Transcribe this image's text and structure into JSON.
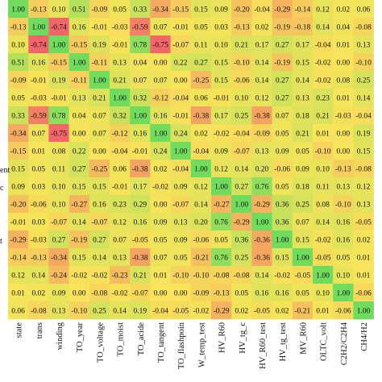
{
  "chart_data": {
    "type": "heatmap",
    "title": "",
    "xlabel": "",
    "ylabel": "",
    "x_categories": [
      "state",
      "trans",
      "winding",
      "TO_year",
      "TO_voltage",
      "TO_moist",
      "TO_acide",
      "TO_tangent",
      "TO_flashpoin",
      "W_temp_test",
      "HV_R60",
      "HV_tg_c",
      "HV_R60_test",
      "HV_tg_test",
      "MV_R60",
      "OLTC_volt",
      "C2H2/C2H4",
      "CH4/H2"
    ],
    "y_visible_label_fragments": [
      {
        "row": 10,
        "text": "ent"
      },
      {
        "row": 11,
        "text": "c"
      },
      {
        "row": 14,
        "text": "t"
      }
    ],
    "color_scale": {
      "low": "#f25c6a",
      "mid": "#f7e45a",
      "high": "#6fdc5e",
      "min": -0.8,
      "max": 1.0
    },
    "values": [
      [
        "1.00",
        "-0.13",
        "0.10",
        "0.51",
        "-0.09",
        "0.05",
        "0.33",
        "-0.34",
        "-0.15",
        "0.15",
        "0.09",
        "-0.20",
        "-0.04",
        "-0.29",
        "-0.14",
        "0.12",
        "0.02",
        "0.06"
      ],
      [
        "-0.13",
        "1.00",
        "-0.74",
        "0.16",
        "-0.01",
        "-0.03",
        "-0.59",
        "0.07",
        "-0.01",
        "0.05",
        "0.03",
        "-0.13",
        "0.02",
        "-0.19",
        "-0.18",
        "0.14",
        "0.04",
        "-0.08"
      ],
      [
        "0.10",
        "-0.74",
        "1.00",
        "-0.15",
        "0.19",
        "-0.01",
        "0.78",
        "-0.75",
        "-0.07",
        "0.11",
        "0.10",
        "0.21",
        "0.17",
        "0.27",
        "0.17",
        "-0.04",
        "0.01",
        "0.13"
      ],
      [
        "0.51",
        "0.16",
        "-0.15",
        "1.00",
        "-0.11",
        "0.13",
        "0.04",
        "0.00",
        "0.22",
        "0.27",
        "0.15",
        "-0.10",
        "0.14",
        "-0.19",
        "0.15",
        "-0.02",
        "0.00",
        "-0.10"
      ],
      [
        "-0.09",
        "-0.01",
        "0.19",
        "-0.11",
        "1.00",
        "0.21",
        "0.07",
        "0.07",
        "0.00",
        "-0.25",
        "0.15",
        "-0.06",
        "0.14",
        "0.27",
        "0.14",
        "-0.02",
        "0.08",
        "0.25"
      ],
      [
        "0.05",
        "-0.03",
        "-0.01",
        "0.13",
        "0.21",
        "1.00",
        "0.32",
        "-0.12",
        "-0.04",
        "0.06",
        "-0.01",
        "0.10",
        "0.12",
        "0.27",
        "0.13",
        "0.23",
        "0.01",
        "0.14"
      ],
      [
        "0.33",
        "-0.59",
        "0.78",
        "0.04",
        "0.07",
        "0.32",
        "1.00",
        "0.16",
        "-0.01",
        "-0.38",
        "0.17",
        "0.25",
        "-0.38",
        "0.07",
        "0.18",
        "0.21",
        "-0.03",
        "-0.04"
      ],
      [
        "-0.34",
        "0.07",
        "-0.75",
        "0.00",
        "0.07",
        "-0.12",
        "0.16",
        "1.00",
        "0.24",
        "0.02",
        "-0.02",
        "-0.04",
        "-0.09",
        "0.05",
        "0.21",
        "0.01",
        "0.00",
        "0.19"
      ],
      [
        "-0.15",
        "0.01",
        "0.08",
        "0.22",
        "0.00",
        "-0.04",
        "-0.01",
        "0.24",
        "1.00",
        "-0.04",
        "0.09",
        "-0.07",
        "0.13",
        "0.09",
        "0.05",
        "-0.10",
        "0.00",
        "0.15"
      ],
      [
        "0.15",
        "0.05",
        "0.11",
        "0.27",
        "-0.25",
        "0.06",
        "-0.38",
        "0.02",
        "-0.04",
        "1.00",
        "0.12",
        "0.14",
        "0.20",
        "-0.06",
        "0.09",
        "0.10",
        "-0.13",
        "-0.08"
      ],
      [
        "0.09",
        "0.03",
        "0.10",
        "0.15",
        "0.15",
        "-0.01",
        "0.17",
        "-0.02",
        "0.09",
        "0.12",
        "1.00",
        "0.27",
        "0.76",
        "0.05",
        "0.18",
        "0.11",
        "0.13",
        "0.12"
      ],
      [
        "-0.20",
        "-0.06",
        "0.10",
        "-0.27",
        "0.16",
        "0.23",
        "0.29",
        "0.00",
        "-0.07",
        "0.14",
        "-0.27",
        "1.00",
        "-0.29",
        "0.36",
        "0.25",
        "0.08",
        "-0.10",
        "0.13"
      ],
      [
        "-0.01",
        "0.03",
        "-0.07",
        "0.14",
        "-0.07",
        "0.12",
        "0.16",
        "0.09",
        "0.13",
        "0.20",
        "0.76",
        "-0.29",
        "1.00",
        "0.36",
        "0.07",
        "0.14",
        "0.16",
        "-0.05"
      ],
      [
        "-0.29",
        "-0.03",
        "0.27",
        "-0.19",
        "0.27",
        "0.07",
        "-0.05",
        "0.05",
        "0.09",
        "-0.06",
        "0.05",
        "0.36",
        "-0.36",
        "1.00",
        "0.15",
        "-0.02",
        "0.16",
        "0.02"
      ],
      [
        "-0.14",
        "-0.13",
        "-0.34",
        "0.15",
        "0.14",
        "0.13",
        "-0.38",
        "0.07",
        "0.05",
        "-0.21",
        "0.76",
        "0.25",
        "-0.36",
        "0.15",
        "1.00",
        "-0.05",
        "0.05",
        "0.01"
      ],
      [
        "0.12",
        "0.14",
        "-0.24",
        "-0.02",
        "-0.02",
        "-0.23",
        "0.21",
        "0.01",
        "-0.10",
        "-0.10",
        "-0.08",
        "-0.08",
        "0.14",
        "-0.02",
        "-0.05",
        "1.00",
        "0.10",
        "0.01"
      ],
      [
        "0.01",
        "0.02",
        "0.09",
        "0.00",
        "-0.08",
        "-0.02",
        "-0.07",
        "0.00",
        "0.00",
        "-0.09",
        "-0.13",
        "0.05",
        "0.16",
        "0.16",
        "0.05",
        "0.10",
        "1.00",
        "-0.06"
      ],
      [
        "0.06",
        "-0.08",
        "0.13",
        "-0.10",
        "0.25",
        "0.14",
        "0.19",
        "-0.04",
        "-0.05",
        "-0.02",
        "-0.29",
        "0.02",
        "-0.05",
        "0.02",
        "-0.21",
        "0.01",
        "-0.06",
        "1.00"
      ]
    ]
  }
}
